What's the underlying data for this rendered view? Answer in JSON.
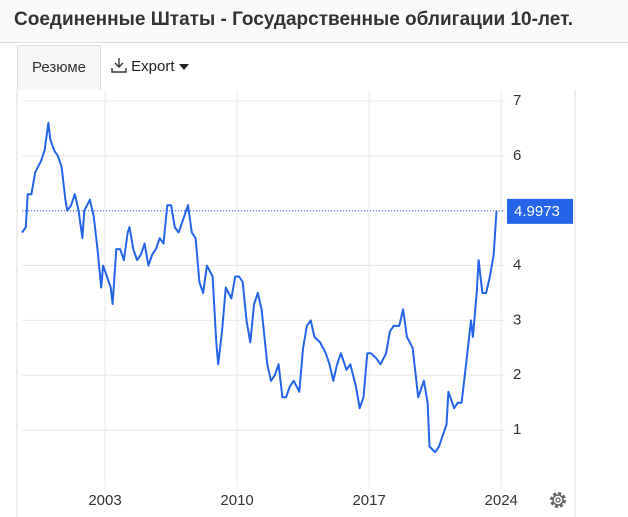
{
  "tabs": [
    "Резюме",
    "Export"
  ],
  "chart_data": {
    "type": "line",
    "title": "Соединенные Штаты - Государственные облигации 10-лет.",
    "xlim": [
      1998.6,
      2024.2
    ],
    "xticks": [
      2003,
      2010,
      2017,
      2024
    ],
    "ylim": [
      0,
      7.2
    ],
    "yticks": [
      1,
      2,
      3,
      4,
      5,
      6,
      7
    ],
    "grid": true,
    "series": [
      {
        "color": "#2563e8",
        "x": [
          1998.6,
          1998.8,
          1998.9,
          1999.1,
          1999.3,
          1999.6,
          1999.8,
          2000.0,
          2000.1,
          2000.3,
          2000.5,
          2000.7,
          2000.9,
          2001.0,
          2001.2,
          2001.4,
          2001.6,
          2001.8,
          2001.9,
          2002.2,
          2002.4,
          2002.6,
          2002.8,
          2002.9,
          2003.1,
          2003.3,
          2003.4,
          2003.6,
          2003.8,
          2004.0,
          2004.2,
          2004.3,
          2004.5,
          2004.7,
          2004.9,
          2005.1,
          2005.3,
          2005.5,
          2005.7,
          2005.9,
          2006.1,
          2006.3,
          2006.5,
          2006.7,
          2006.9,
          2007.1,
          2007.4,
          2007.6,
          2007.8,
          2008.0,
          2008.2,
          2008.4,
          2008.7,
          2008.9,
          2009.0,
          2009.2,
          2009.4,
          2009.7,
          2009.9,
          2010.1,
          2010.3,
          2010.5,
          2010.7,
          2010.9,
          2011.1,
          2011.3,
          2011.6,
          2011.8,
          2012.0,
          2012.2,
          2012.4,
          2012.6,
          2012.8,
          2013.0,
          2013.3,
          2013.5,
          2013.7,
          2013.9,
          2014.1,
          2014.4,
          2014.7,
          2014.9,
          2015.1,
          2015.3,
          2015.5,
          2015.8,
          2016.0,
          2016.3,
          2016.5,
          2016.7,
          2016.9,
          2017.1,
          2017.4,
          2017.6,
          2017.9,
          2018.1,
          2018.3,
          2018.6,
          2018.8,
          2019.0,
          2019.3,
          2019.6,
          2019.9,
          2020.1,
          2020.2,
          2020.5,
          2020.7,
          2020.9,
          2021.1,
          2021.2,
          2021.5,
          2021.7,
          2021.9,
          2022.0,
          2022.2,
          2022.4,
          2022.5,
          2022.7,
          2022.8,
          2023.0,
          2023.2,
          2023.4,
          2023.6,
          2023.75
        ],
        "values": [
          4.6,
          4.7,
          5.3,
          5.3,
          5.7,
          5.9,
          6.1,
          6.6,
          6.3,
          6.1,
          6.0,
          5.8,
          5.2,
          5.0,
          5.1,
          5.3,
          5.0,
          4.5,
          5.0,
          5.2,
          4.9,
          4.3,
          3.6,
          4.0,
          3.8,
          3.6,
          3.3,
          4.3,
          4.3,
          4.1,
          4.6,
          4.7,
          4.3,
          4.1,
          4.2,
          4.4,
          4.0,
          4.2,
          4.3,
          4.5,
          4.4,
          5.1,
          5.1,
          4.7,
          4.6,
          4.8,
          5.1,
          4.6,
          4.5,
          3.7,
          3.5,
          4.0,
          3.8,
          2.6,
          2.2,
          2.8,
          3.6,
          3.4,
          3.8,
          3.8,
          3.7,
          3.0,
          2.6,
          3.3,
          3.5,
          3.2,
          2.2,
          1.9,
          2.0,
          2.2,
          1.6,
          1.6,
          1.8,
          1.9,
          1.7,
          2.5,
          2.9,
          3.0,
          2.7,
          2.6,
          2.4,
          2.2,
          1.9,
          2.2,
          2.4,
          2.1,
          2.2,
          1.8,
          1.4,
          1.6,
          2.4,
          2.4,
          2.3,
          2.2,
          2.4,
          2.8,
          2.9,
          2.9,
          3.2,
          2.7,
          2.5,
          1.6,
          1.9,
          1.5,
          0.7,
          0.6,
          0.7,
          0.9,
          1.1,
          1.7,
          1.4,
          1.5,
          1.5,
          1.8,
          2.4,
          3.0,
          2.7,
          3.5,
          4.1,
          3.5,
          3.5,
          3.8,
          4.2,
          4.9973
        ]
      }
    ]
  }
}
